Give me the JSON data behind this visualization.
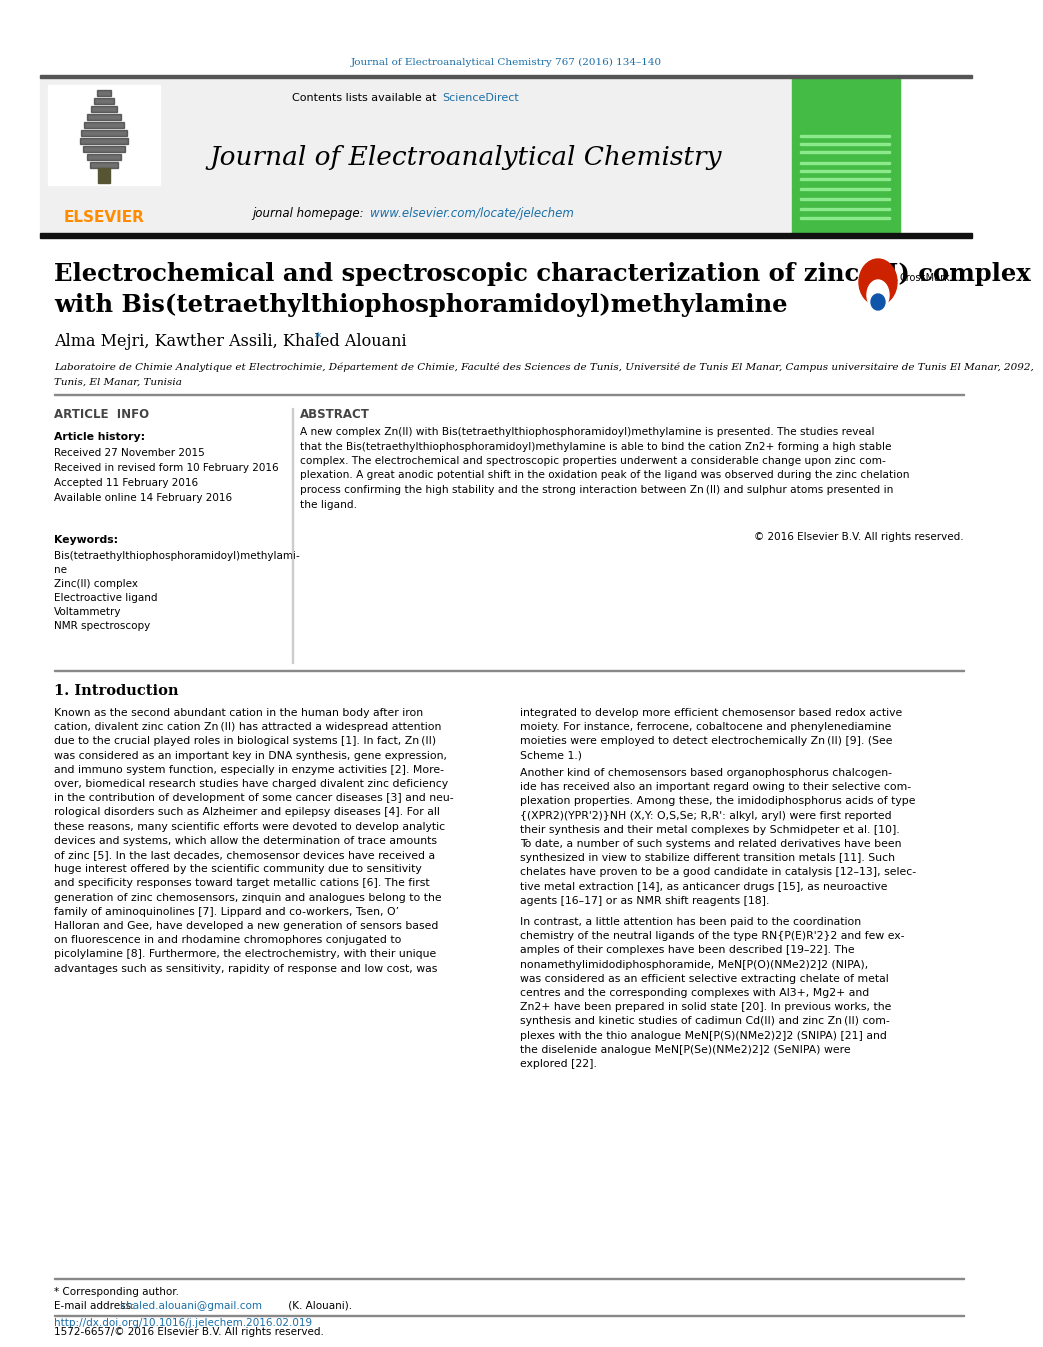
{
  "page_title_line": "Journal of Electroanalytical Chemistry 767 (2016) 134–140",
  "journal_name": "Journal of Electroanalytical Chemistry",
  "contents_text": "Contents lists available at",
  "science_direct": "ScienceDirect",
  "journal_homepage_label": "journal homepage:",
  "journal_url": "www.elsevier.com/locate/jelechem",
  "elsevier_text": "ELSEVIER",
  "article_title_line1": "Electrochemical and spectroscopic characterization of zinc (II) complex",
  "article_title_line2": "with Bis(tetraethylthiophosphoramidoyl)methylamine",
  "authors": "Alma Mejri, Kawther Assili, Khaled Alouani",
  "author_star": "*",
  "affiliation_line1": "Laboratoire de Chimie Analytique et Electrochimie, Département de Chimie, Faculté des Sciences de Tunis, Université de Tunis El Manar, Campus universitaire de Tunis El Manar, 2092,",
  "affiliation_line2": "Tunis, El Manar, Tunisia",
  "article_info_label": "ARTICLE  INFO",
  "abstract_label": "ABSTRACT",
  "article_history_title": "Article history:",
  "received_1": "Received 27 November 2015",
  "received_revised": "Received in revised form 10 February 2016",
  "accepted": "Accepted 11 February 2016",
  "available": "Available online 14 February 2016",
  "keywords_title": "Keywords:",
  "keyword1": "Bis(tetraethylthiophosphoramidoyl)methylami-",
  "keyword1b": "ne",
  "keyword2": "Zinc(II) complex",
  "keyword3": "Electroactive ligand",
  "keyword4": "Voltammetry",
  "keyword5": "NMR spectroscopy",
  "copyright_text": "© 2016 Elsevier B.V. All rights reserved.",
  "intro_section": "1. Introduction",
  "footer_corresponding": "* Corresponding author.",
  "footer_email_label": "E-mail address:",
  "footer_email": "khaled.alouani@gmail.com",
  "footer_email_suffix": "(K. Alouani).",
  "footer_doi": "http://dx.doi.org/10.1016/j.jelechem.2016.02.019",
  "footer_issn": "1572-6657/© 2016 Elsevier B.V. All rights reserved.",
  "header_bg": "#f0f0f0",
  "elsevier_color": "#FF8C00",
  "link_color": "#1a6fa8",
  "abstract_lines": [
    "A new complex Zn(II) with Bis(tetraethylthiophosphoramidoyl)methylamine is presented. The studies reveal",
    "that the Bis(tetraethylthiophosphoramidoyl)methylamine is able to bind the cation Zn2+ forming a high stable",
    "complex. The electrochemical and spectroscopic properties underwent a considerable change upon zinc com-",
    "plexation. A great anodic potential shift in the oxidation peak of the ligand was observed during the zinc chelation",
    "process confirming the high stability and the strong interaction between Zn (II) and sulphur atoms presented in",
    "the ligand."
  ],
  "left_col_lines": [
    "Known as the second abundant cation in the human body after iron",
    "cation, divalent zinc cation Zn (II) has attracted a widespread attention",
    "due to the crucial played roles in biological systems [1]. In fact, Zn (II)",
    "was considered as an important key in DNA synthesis, gene expression,",
    "and immuno system function, especially in enzyme activities [2]. More-",
    "over, biomedical research studies have charged divalent zinc deficiency",
    "in the contribution of development of some cancer diseases [3] and neu-",
    "rological disorders such as Alzheimer and epilepsy diseases [4]. For all",
    "these reasons, many scientific efforts were devoted to develop analytic",
    "devices and systems, which allow the determination of trace amounts",
    "of zinc [5]. In the last decades, chemosensor devices have received a",
    "huge interest offered by the scientific community due to sensitivity",
    "and specificity responses toward target metallic cations [6]. The first",
    "generation of zinc chemosensors, zinquin and analogues belong to the",
    "family of aminoquinolines [7]. Lippard and co-workers, Tsen, O’",
    "Halloran and Gee, have developed a new generation of sensors based",
    "on fluorescence in and rhodamine chromophores conjugated to",
    "picolylamine [8]. Furthermore, the electrochemistry, with their unique",
    "advantages such as sensitivity, rapidity of response and low cost, was"
  ],
  "right_col_p1": [
    "integrated to develop more efficient chemosensor based redox active",
    "moiety. For instance, ferrocene, cobaltocene and phenylenediamine",
    "moieties were employed to detect electrochemically Zn (II) [9]. (See",
    "Scheme 1.)"
  ],
  "right_col_p2": [
    "Another kind of chemosensors based organophosphorus chalcogen-",
    "ide has received also an important regard owing to their selective com-",
    "plexation properties. Among these, the imidodiphosphorus acids of type",
    "{(XPR2)(YPR'2)}NH (X,Y: O,S,Se; R,R': alkyl, aryl) were first reported",
    "their synthesis and their metal complexes by Schmidpeter et al. [10].",
    "To date, a number of such systems and related derivatives have been",
    "synthesized in view to stabilize different transition metals [11]. Such",
    "chelates have proven to be a good candidate in catalysis [12–13], selec-",
    "tive metal extraction [14], as anticancer drugs [15], as neuroactive",
    "agents [16–17] or as NMR shift reagents [18]."
  ],
  "right_col_p3": [
    "In contrast, a little attention has been paid to the coordination",
    "chemistry of the neutral ligands of the type RN{P(E)R'2}2 and few ex-",
    "amples of their complexes have been described [19–22]. The",
    "nonamethylimidodiphosphoramide, MeN[P(O)(NMe2)2]2 (NIPA),",
    "was considered as an efficient selective extracting chelate of metal",
    "centres and the corresponding complexes with Al3+, Mg2+ and",
    "Zn2+ have been prepared in solid state [20]. In previous works, the",
    "synthesis and kinetic studies of cadimun Cd(II) and zinc Zn (II) com-",
    "plexes with the thio analogue MeN[P(S)(NMe2)2]2 (SNIPA) [21] and",
    "the diselenide analogue MeN[P(Se)(NMe2)2]2 (SeNIPA) were",
    "explored [22]."
  ]
}
